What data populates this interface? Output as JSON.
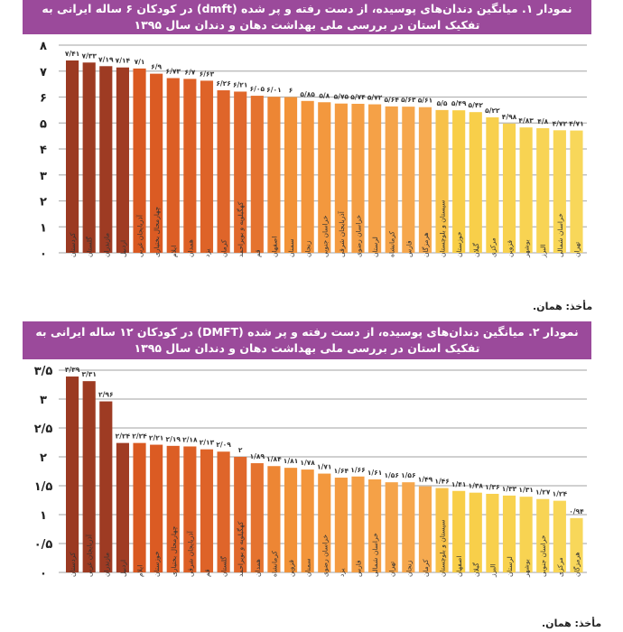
{
  "chart_data": [
    {
      "type": "bar",
      "title": "نمودار ۱. میانگین دندان‌های پوسیده، از دست رفته و پر شده (dmft) در کودکان ۶ ساله ایرانی به تفکیک استان در بررسی ملی بهداشت دهان و دندان سال ۱۳۹۵",
      "source": "مأخذ: همان.",
      "ylim": [
        0,
        8
      ],
      "yticks": [
        0,
        1,
        2,
        3,
        4,
        5,
        6,
        7,
        8
      ],
      "grid": true,
      "categories": [
        "کردستان",
        "گلستان",
        "مازندران",
        "اردبیل",
        "آذربایجان غربی",
        "چهارمحال بختیاری",
        "ایلام",
        "همدان",
        "یزد",
        "کرمان",
        "کهگیلویه و بویراحمد",
        "قم",
        "اصفهان",
        "سمنان",
        "زنجان",
        "خراسان جنوبی",
        "آذربایجان شرقی",
        "خراسان رضوی",
        "لرستان",
        "کرمانشاه",
        "فارس",
        "هرمزگان",
        "سیستان و بلوچستان",
        "خوزستان",
        "گیلان",
        "مرکزی",
        "قزوین",
        "بوشهر",
        "البرز",
        "خراسان شمالی",
        "تهران"
      ],
      "values": [
        7.41,
        7.33,
        7.19,
        7.14,
        7.1,
        6.9,
        6.73,
        6.7,
        6.63,
        6.26,
        6.21,
        6.05,
        6.01,
        6,
        5.85,
        5.8,
        5.75,
        5.74,
        5.72,
        5.64,
        5.63,
        5.61,
        5.5,
        5.49,
        5.42,
        5.22,
        4.98,
        4.83,
        4.8,
        4.72,
        4.71
      ]
    },
    {
      "type": "bar",
      "title": "نمودار ۲. میانگین دندان‌های پوسیده، از دست رفته و پر شده (DMFT) در کودکان ۱۲ ساله ایرانی به تفکیک استان در بررسی ملی بهداشت دهان و دندان سال ۱۳۹۵",
      "source": "مأخذ: همان.",
      "ylim": [
        0,
        3.5
      ],
      "yticks": [
        0,
        0.5,
        1,
        1.5,
        2,
        2.5,
        3,
        3.5
      ],
      "grid": true,
      "categories": [
        "کردستان",
        "آذربایجان غربی",
        "مازندران",
        "اردبیل",
        "ایلام",
        "خوزستان",
        "چهارمحال بختیاری",
        "آذربایجان شرقی",
        "قم",
        "گلستان",
        "کهگیلویه و بویراحمد",
        "همدان",
        "کرمانشاه",
        "قزوین",
        "سمنان",
        "خراسان رضوی",
        "یزد",
        "فارس",
        "خراسان شمالی",
        "تهران",
        "زنجان",
        "کرمان",
        "سیستان و بلوچستان",
        "اصفهان",
        "گیلان",
        "البرز",
        "لرستان",
        "بوشهر",
        "خراسان جنوبی",
        "مرکزی",
        "هرمزگان"
      ],
      "values": [
        3.39,
        3.31,
        2.96,
        2.24,
        2.24,
        2.21,
        2.19,
        2.18,
        2.13,
        2.09,
        2,
        1.89,
        1.84,
        1.81,
        1.78,
        1.71,
        1.64,
        1.66,
        1.61,
        1.56,
        1.56,
        1.49,
        1.46,
        1.41,
        1.38,
        1.36,
        1.33,
        1.31,
        1.27,
        1.24,
        0.94
      ]
    }
  ],
  "colors": {
    "title_bg": "#9b4a9b",
    "grid": "#aaaaaa"
  }
}
